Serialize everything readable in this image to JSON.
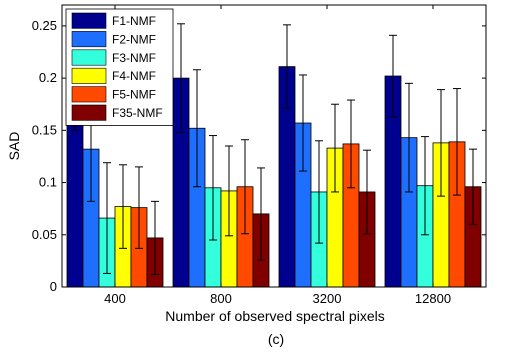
{
  "chart_data": {
    "type": "bar",
    "xlabel": "Number of observed spectral pixels",
    "ylabel": "SAD",
    "caption": "(c)",
    "ylim": [
      0,
      0.27
    ],
    "yticks": [
      "0",
      "0.05",
      "0.1",
      "0.15",
      "0.2",
      "0.25"
    ],
    "ytick_values": [
      0,
      0.05,
      0.1,
      0.15,
      0.2,
      0.25
    ],
    "categories": [
      "400",
      "800",
      "3200",
      "12800"
    ],
    "legend_position": "top-left",
    "error_bars": true,
    "series": [
      {
        "name": "F1-NMF",
        "color": "#00008f",
        "values": [
          0.2,
          0.2,
          0.211,
          0.202
        ],
        "errors": [
          0.05,
          0.052,
          0.04,
          0.039
        ]
      },
      {
        "name": "F2-NMF",
        "color": "#1f6fff",
        "values": [
          0.132,
          0.152,
          0.157,
          0.143
        ],
        "errors": [
          0.05,
          0.056,
          0.046,
          0.052
        ]
      },
      {
        "name": "F3-NMF",
        "color": "#33ffdd",
        "values": [
          0.066,
          0.095,
          0.091,
          0.097
        ],
        "errors": [
          0.053,
          0.05,
          0.049,
          0.047
        ]
      },
      {
        "name": "F4-NMF",
        "color": "#ffff00",
        "values": [
          0.077,
          0.092,
          0.133,
          0.138
        ],
        "errors": [
          0.04,
          0.043,
          0.042,
          0.051
        ]
      },
      {
        "name": "F5-NMF",
        "color": "#ff4a00",
        "values": [
          0.076,
          0.096,
          0.137,
          0.139
        ],
        "errors": [
          0.039,
          0.045,
          0.042,
          0.051
        ]
      },
      {
        "name": "F35-NMF",
        "color": "#800000",
        "values": [
          0.047,
          0.07,
          0.091,
          0.096
        ],
        "errors": [
          0.035,
          0.044,
          0.04,
          0.036
        ]
      }
    ]
  }
}
